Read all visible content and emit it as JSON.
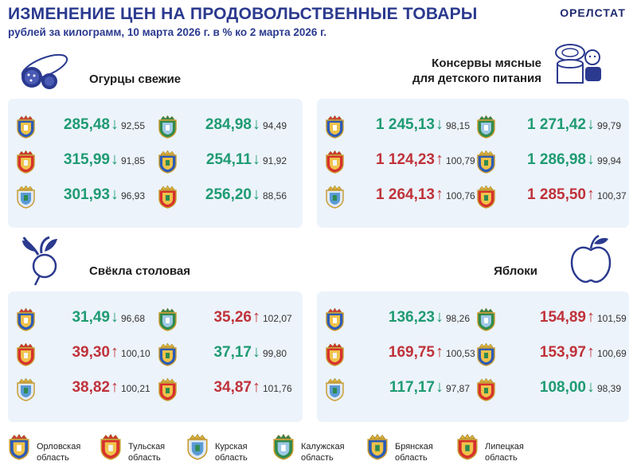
{
  "header": {
    "title": "ИЗМЕНЕНИЕ ЦЕН НА ПРОДОВОЛЬСТВЕННЫЕ ТОВАРЫ",
    "subtitle": "рублей за килограмм, 10 марта 2026 г. в % ко 2 марта 2026 г.",
    "brand": "ОРЕЛСТАТ"
  },
  "sections": {
    "cucumbers": {
      "title": "Огурцы свежие",
      "items": [
        {
          "region": "orel",
          "price": "285,48",
          "dir": "down",
          "pct": "92,55"
        },
        {
          "region": "kaluga",
          "price": "284,98",
          "dir": "down",
          "pct": "94,49"
        },
        {
          "region": "tula",
          "price": "315,99",
          "dir": "down",
          "pct": "91,85"
        },
        {
          "region": "bryansk",
          "price": "254,11",
          "dir": "down",
          "pct": "91,92"
        },
        {
          "region": "kursk",
          "price": "301,93",
          "dir": "down",
          "pct": "96,93"
        },
        {
          "region": "lipetsk",
          "price": "256,20",
          "dir": "down",
          "pct": "88,56"
        }
      ]
    },
    "canned": {
      "title_line1": "Консервы мясные",
      "title_line2": "для детского питания",
      "items": [
        {
          "region": "orel",
          "price": "1 245,13",
          "dir": "down",
          "pct": "98,15"
        },
        {
          "region": "kaluga",
          "price": "1 271,42",
          "dir": "down",
          "pct": "99,79"
        },
        {
          "region": "tula",
          "price": "1 124,23",
          "dir": "up",
          "pct": "100,79"
        },
        {
          "region": "bryansk",
          "price": "1 286,98",
          "dir": "down",
          "pct": "99,94"
        },
        {
          "region": "kursk",
          "price": "1 264,13",
          "dir": "up",
          "pct": "100,76"
        },
        {
          "region": "lipetsk",
          "price": "1 285,50",
          "dir": "up",
          "pct": "100,37"
        }
      ]
    },
    "beet": {
      "title": "Свёкла столовая",
      "items": [
        {
          "region": "orel",
          "price": "31,49",
          "dir": "down",
          "pct": "96,68"
        },
        {
          "region": "kaluga",
          "price": "35,26",
          "dir": "up",
          "pct": "102,07"
        },
        {
          "region": "tula",
          "price": "39,30",
          "dir": "up",
          "pct": "100,10"
        },
        {
          "region": "bryansk",
          "price": "37,17",
          "dir": "down",
          "pct": "99,80"
        },
        {
          "region": "kursk",
          "price": "38,82",
          "dir": "up",
          "pct": "100,21"
        },
        {
          "region": "lipetsk",
          "price": "34,87",
          "dir": "up",
          "pct": "101,76"
        }
      ]
    },
    "apples": {
      "title": "Яблоки",
      "items": [
        {
          "region": "orel",
          "price": "136,23",
          "dir": "down",
          "pct": "98,26"
        },
        {
          "region": "kaluga",
          "price": "154,89",
          "dir": "up",
          "pct": "101,59"
        },
        {
          "region": "tula",
          "price": "169,75",
          "dir": "up",
          "pct": "100,53"
        },
        {
          "region": "bryansk",
          "price": "153,97",
          "dir": "up",
          "pct": "100,69"
        },
        {
          "region": "kursk",
          "price": "117,17",
          "dir": "down",
          "pct": "97,87"
        },
        {
          "region": "lipetsk",
          "price": "108,00",
          "dir": "down",
          "pct": "98,39"
        }
      ]
    }
  },
  "legend": [
    {
      "region": "orel",
      "line1": "Орловская",
      "line2": "область"
    },
    {
      "region": "tula",
      "line1": "Тульская",
      "line2": "область"
    },
    {
      "region": "kursk",
      "line1": "Курская",
      "line2": "область"
    },
    {
      "region": "kaluga",
      "line1": "Калужская",
      "line2": "область"
    },
    {
      "region": "bryansk",
      "line1": "Брянская",
      "line2": "область"
    },
    {
      "region": "lipetsk",
      "line1": "Липецкая",
      "line2": "область"
    }
  ],
  "colors": {
    "down": "#1f9b72",
    "up": "#c0323a",
    "accent": "#2b3a8f",
    "panel": "#ecf3fb"
  },
  "arrows": {
    "down": "↓",
    "up": "↑"
  }
}
